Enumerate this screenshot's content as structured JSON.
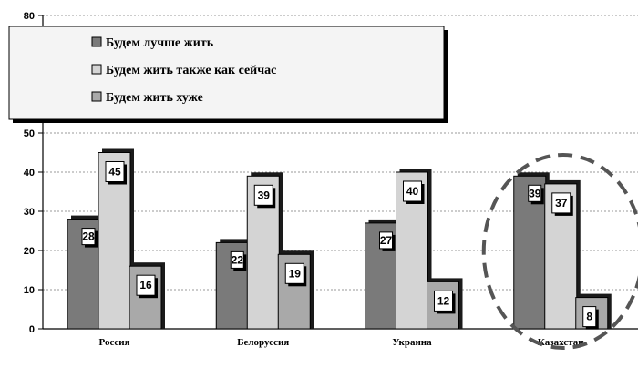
{
  "chart_data": {
    "type": "bar",
    "categories": [
      "Россия",
      "Белоруссия",
      "Украина",
      "Казахстан"
    ],
    "series": [
      {
        "name": "Будем лучше жить",
        "values": [
          28,
          22,
          27,
          39
        ],
        "color": "#7a7a7a"
      },
      {
        "name": "Будем жить также как сейчас",
        "values": [
          45,
          39,
          40,
          37
        ],
        "color": "#d4d4d4"
      },
      {
        "name": "Будем жить хуже",
        "values": [
          16,
          19,
          12,
          8
        ],
        "color": "#a9a9a9"
      }
    ],
    "ylim": [
      0,
      80
    ],
    "yticks": [
      0,
      10,
      20,
      30,
      40,
      50,
      80
    ],
    "grid": true,
    "legend": "top-left",
    "highlight": "Казахстан"
  }
}
